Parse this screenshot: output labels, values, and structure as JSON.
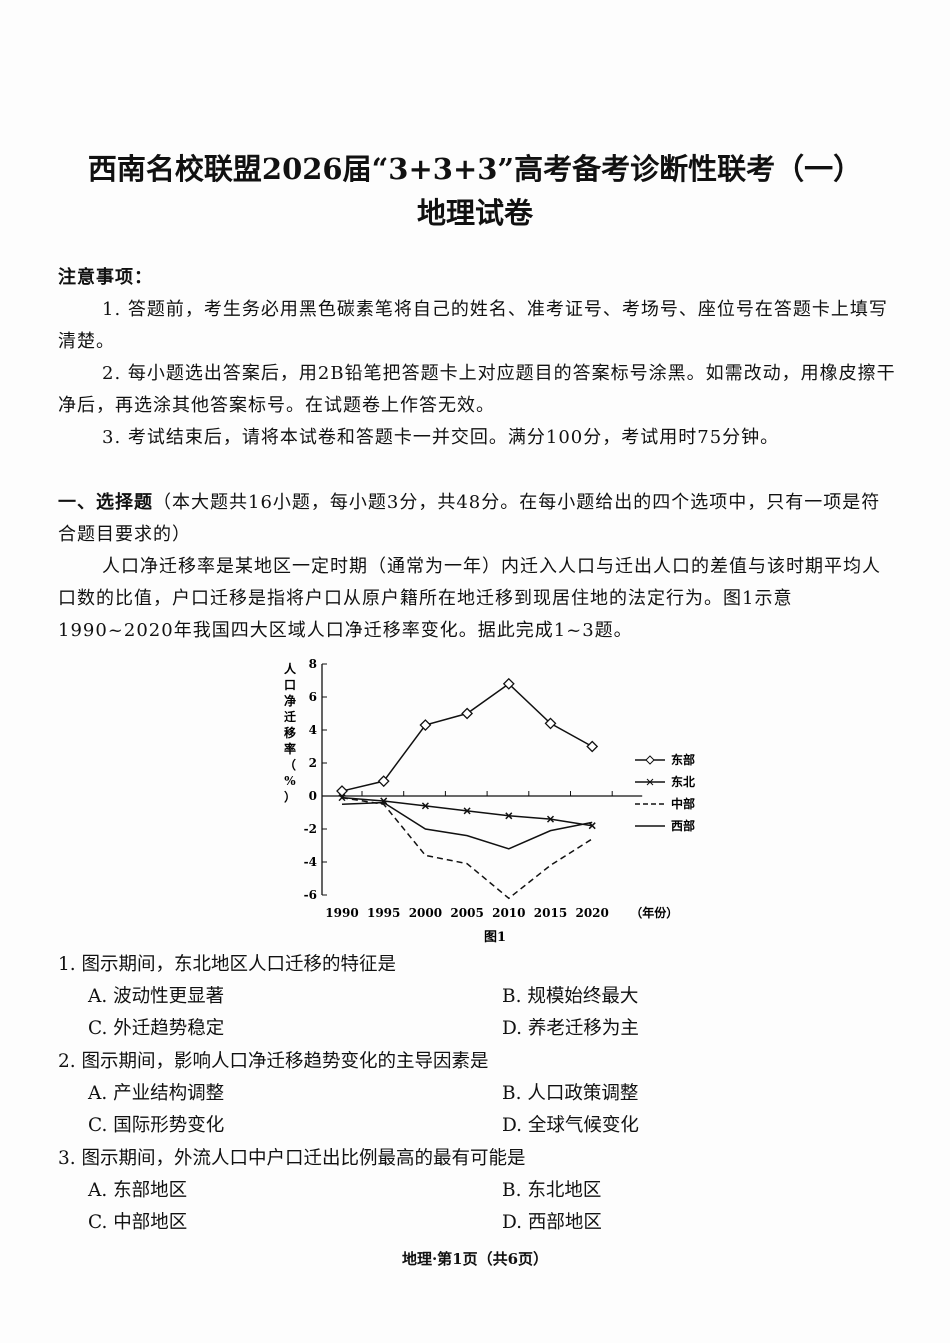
{
  "header": {
    "title": "西南名校联盟2026届“3+3+3”高考备考诊断性联考（一）",
    "subtitle": "地理试卷"
  },
  "notice": {
    "heading": "注意事项：",
    "items": [
      "1. 答题前，考生务必用黑色碳素笔将自己的姓名、准考证号、考场号、座位号在答题卡上填写清楚。",
      "2. 每小题选出答案后，用2B铅笔把答题卡上对应题目的答案标号涂黑。如需改动，用橡皮擦干净后，再选涂其他答案标号。在试题卷上作答无效。",
      "3. 考试结束后，请将本试卷和答题卡一并交回。满分100分，考试用时75分钟。"
    ]
  },
  "section": {
    "heading": "一、选择题",
    "desc": "（本大题共16小题，每小题3分，共48分。在每小题给出的四个选项中，只有一项是符合题目要求的）",
    "intro": "人口净迁移率是某地区一定时期（通常为一年）内迁入人口与迁出人口的差值与该时期平均人口数的比值，户口迁移是指将户口从原户籍所在地迁移到现居住地的法定行为。图1示意1990~2020年我国四大区域人口净迁移率变化。据此完成1~3题。"
  },
  "chart_data": {
    "type": "line",
    "caption": "图1",
    "ylabel": "人口净迁移率（%）",
    "xlabel": "（年份）",
    "x": [
      1990,
      1995,
      2000,
      2005,
      2010,
      2015,
      2020
    ],
    "ylim": [
      -6,
      8
    ],
    "yticks": [
      -6,
      -4,
      -2,
      0,
      2,
      4,
      6,
      8
    ],
    "grid": false,
    "legend_position": "right",
    "series": [
      {
        "name": "东部",
        "style": "solid-diamond",
        "values": [
          0.3,
          0.9,
          4.3,
          5.0,
          6.8,
          4.4,
          3.0
        ]
      },
      {
        "name": "东北",
        "style": "solid-cross",
        "values": [
          -0.1,
          -0.3,
          -0.6,
          -0.9,
          -1.2,
          -1.4,
          -1.8
        ]
      },
      {
        "name": "中部",
        "style": "dashed",
        "values": [
          -0.1,
          -0.5,
          -3.6,
          -4.1,
          -6.2,
          -4.2,
          -2.6
        ]
      },
      {
        "name": "西部",
        "style": "solid",
        "values": [
          -0.5,
          -0.4,
          -2.0,
          -2.4,
          -3.2,
          -2.1,
          -1.6
        ]
      }
    ]
  },
  "questions": [
    {
      "stem": "1. 图示期间，东北地区人口迁移的特征是",
      "options": [
        "A. 波动性更显著",
        "B. 规模始终最大",
        "C. 外迁趋势稳定",
        "D. 养老迁移为主"
      ]
    },
    {
      "stem": "2. 图示期间，影响人口净迁移趋势变化的主导因素是",
      "options": [
        "A. 产业结构调整",
        "B. 人口政策调整",
        "C. 国际形势变化",
        "D. 全球气候变化"
      ]
    },
    {
      "stem": "3. 图示期间，外流人口中户口迁出比例最高的最有可能是",
      "options": [
        "A. 东部地区",
        "B. 东北地区",
        "C. 中部地区",
        "D. 西部地区"
      ]
    }
  ],
  "footer": "地理·第1页（共6页）"
}
